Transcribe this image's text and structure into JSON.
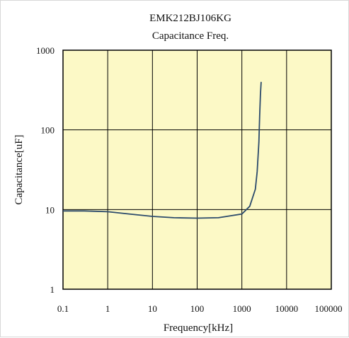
{
  "chart_data": {
    "type": "line",
    "title": "EMK212BJ106KG",
    "subtitle": "Capacitance Freq.",
    "xlabel": "Frequency[kHz]",
    "ylabel": "Capacitance[uF]",
    "x_scale": "log",
    "y_scale": "log",
    "xlim": [
      0.1,
      100000
    ],
    "ylim": [
      1,
      1000
    ],
    "x_ticks": [
      "0.1",
      "1",
      "10",
      "100",
      "1000",
      "10000",
      "100000"
    ],
    "y_ticks": [
      "1",
      "10",
      "100",
      "1000"
    ],
    "grid": true,
    "plot_background": "#fcf9c6",
    "line_color": "#2b4a6b",
    "series": [
      {
        "x": [
          0.1,
          0.3,
          1,
          3,
          10,
          30,
          100,
          300,
          1000,
          1500,
          2000,
          2200,
          2400,
          2500,
          2600,
          2700
        ],
        "y": [
          9.6,
          9.6,
          9.4,
          8.8,
          8.2,
          7.9,
          7.8,
          7.9,
          8.8,
          11,
          18,
          30,
          70,
          150,
          280,
          400
        ]
      }
    ]
  }
}
